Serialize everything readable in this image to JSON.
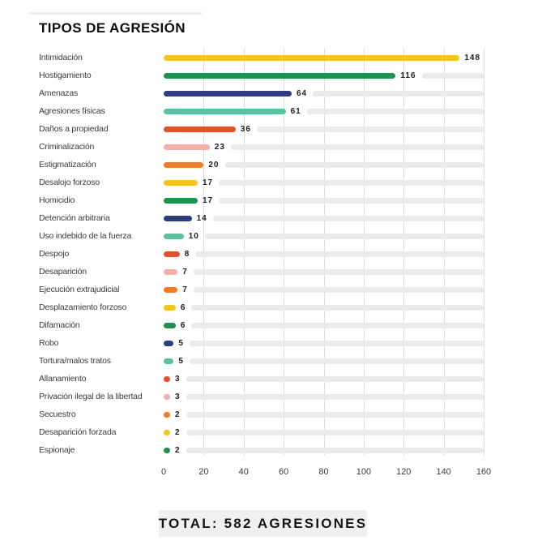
{
  "header": {
    "title": "TIPOS DE AGRESIÓN"
  },
  "chart_data": {
    "type": "bar",
    "orientation": "horizontal",
    "title": "TIPOS DE AGRESIÓN",
    "categories": [
      "Intimidación",
      "Hostigamiento",
      "Amenazas",
      "Agresiones físicas",
      "Daños a propiedad",
      "Criminalización",
      "Estigmatización",
      "Desalojo forzoso",
      "Homicidio",
      "Detención arbitraria",
      "Uso indebido de la fuerza",
      "Despojo",
      "Desaparición",
      "Ejecución extrajudicial",
      "Desplazamiento forzoso",
      "Difamación",
      "Robo",
      "Tortura/malos tratos",
      "Allanamiento",
      "Privación ilegal de la libertad",
      "Secuestro",
      "Desaparición forzada",
      "Espionaje"
    ],
    "values": [
      148,
      116,
      64,
      61,
      36,
      23,
      20,
      17,
      17,
      14,
      10,
      8,
      7,
      7,
      6,
      6,
      5,
      5,
      3,
      3,
      2,
      2,
      2
    ],
    "value_labels_shown": true,
    "xlim": [
      0,
      160
    ],
    "x_ticks": [
      0,
      20,
      40,
      60,
      80,
      100,
      120,
      140,
      160
    ],
    "grid": "vertical",
    "legend": "none",
    "bar_color_cycle": [
      "#F5C51E",
      "#1E9150",
      "#2E3D7D",
      "#5EC0A3",
      "#E1512D",
      "#F3AFA8",
      "#EC7D2B"
    ],
    "track_color": "#EBEBEB",
    "gridline_color": "#DCDCDC"
  },
  "footer": {
    "total_label": "TOTAL: 582 AGRESIONES"
  }
}
